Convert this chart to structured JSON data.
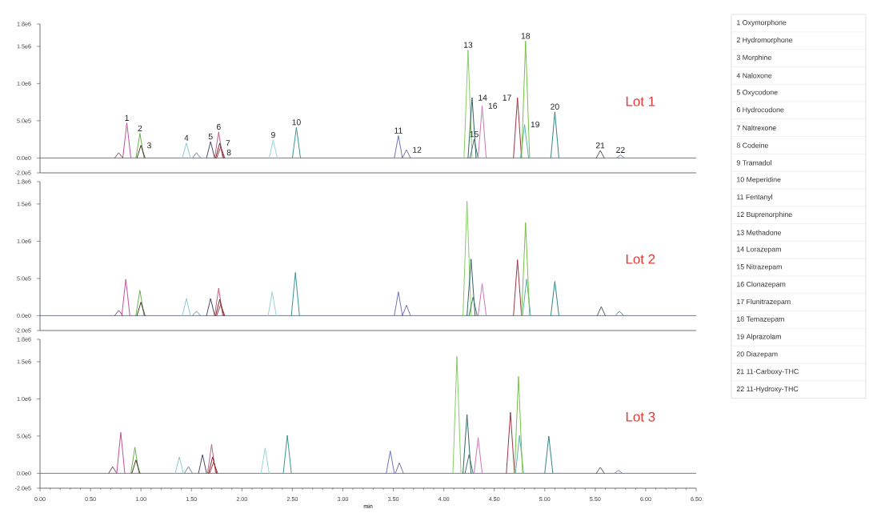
{
  "chart_data": [
    {
      "type": "line",
      "xlim": [
        0,
        6.5
      ],
      "ylim": [
        -200000,
        1800000
      ],
      "tick_labels": "y",
      "yticks": [
        {
          "value": -200000,
          "label": "-2.0e5"
        },
        {
          "value": 0,
          "label": "0.0e0"
        },
        {
          "value": 500000,
          "label": "5.0e5"
        },
        {
          "value": 1000000,
          "label": "1.0e6"
        },
        {
          "value": 1500000,
          "label": "1.5e6"
        },
        {
          "value": 1800000,
          "label": "1.8e6"
        }
      ],
      "ref_lines": [
        {
          "axis": "y",
          "value": 0,
          "color": "#505a6e"
        }
      ],
      "annotations": [
        "Lot 1",
        {
          "text": "1",
          "x": 0.86,
          "y": 470000
        },
        {
          "text": "2",
          "x": 0.99,
          "y": 330000
        },
        {
          "text": "3",
          "x": 1.0,
          "y": 170000
        },
        {
          "text": "4",
          "x": 1.45,
          "y": 200000
        },
        {
          "text": "5",
          "x": 1.69,
          "y": 220000
        },
        {
          "text": "6",
          "x": 1.77,
          "y": 350000
        },
        {
          "text": "7",
          "x": 1.78,
          "y": 200000
        },
        {
          "text": "8",
          "x": 1.79,
          "y": 150000
        },
        {
          "text": "9",
          "x": 2.31,
          "y": 240000
        },
        {
          "text": "10",
          "x": 2.54,
          "y": 410000
        },
        {
          "text": "11",
          "x": 3.55,
          "y": 300000
        },
        {
          "text": "12",
          "x": 3.63,
          "y": 110000
        },
        {
          "text": "13",
          "x": 4.24,
          "y": 1450000
        },
        {
          "text": "14",
          "x": 4.28,
          "y": 810000
        },
        {
          "text": "15",
          "x": 4.3,
          "y": 250000
        },
        {
          "text": "16",
          "x": 4.38,
          "y": 700000
        },
        {
          "text": "17",
          "x": 4.73,
          "y": 810000
        },
        {
          "text": "18",
          "x": 4.81,
          "y": 1570000
        },
        {
          "text": "19",
          "x": 4.8,
          "y": 450000
        },
        {
          "text": "20",
          "x": 5.1,
          "y": 620000
        },
        {
          "text": "21",
          "x": 5.55,
          "y": 100000
        },
        {
          "text": "22",
          "x": 5.75,
          "y": 40000
        }
      ],
      "series": [
        {
          "color": "#7a4a5a",
          "x": [
            0.74,
            0.78,
            0.82
          ],
          "values": [
            0,
            70000,
            0
          ]
        },
        {
          "color": "#c0509a",
          "x": [
            0.82,
            0.86,
            0.9
          ],
          "values": [
            0,
            470000,
            0
          ]
        },
        {
          "color": "#6ab04a",
          "x": [
            0.95,
            0.99,
            1.03
          ],
          "values": [
            0,
            330000,
            0
          ]
        },
        {
          "color": "#3c3c28",
          "x": [
            0.96,
            1.0,
            1.04
          ],
          "values": [
            0,
            170000,
            0
          ]
        },
        {
          "color": "#88cccc",
          "x": [
            1.41,
            1.45,
            1.49
          ],
          "values": [
            0,
            200000,
            0
          ]
        },
        {
          "color": "#7a86a6",
          "x": [
            1.51,
            1.55,
            1.59
          ],
          "values": [
            0,
            70000,
            0
          ]
        },
        {
          "color": "#4a4a5a",
          "x": [
            1.65,
            1.69,
            1.73
          ],
          "values": [
            0,
            220000,
            0
          ]
        },
        {
          "color": "#c0607e",
          "x": [
            1.73,
            1.77,
            1.81
          ],
          "values": [
            0,
            350000,
            0
          ]
        },
        {
          "color": "#7a2030",
          "x": [
            1.74,
            1.78,
            1.82
          ],
          "values": [
            0,
            200000,
            0
          ]
        },
        {
          "color": "#a03a3a",
          "x": [
            1.75,
            1.79,
            1.83
          ],
          "values": [
            0,
            150000,
            0
          ]
        },
        {
          "color": "#98d4d4",
          "x": [
            2.27,
            2.31,
            2.35
          ],
          "values": [
            0,
            240000,
            0
          ]
        },
        {
          "color": "#3a9494",
          "x": [
            2.5,
            2.54,
            2.58
          ],
          "values": [
            0,
            410000,
            0
          ]
        },
        {
          "color": "#6a74b4",
          "x": [
            3.51,
            3.55,
            3.59
          ],
          "values": [
            0,
            300000,
            0
          ]
        },
        {
          "color": "#7a6aa4",
          "x": [
            3.59,
            3.63,
            3.67
          ],
          "values": [
            0,
            110000,
            0
          ]
        },
        {
          "color": "#88cc66",
          "x": [
            4.2,
            4.24,
            4.28
          ],
          "values": [
            0,
            1450000,
            0
          ]
        },
        {
          "color": "#2e6464",
          "x": [
            4.24,
            4.28,
            4.32
          ],
          "values": [
            0,
            810000,
            0
          ]
        },
        {
          "color": "#3a7a6a",
          "x": [
            4.26,
            4.3,
            4.34
          ],
          "values": [
            0,
            250000,
            0
          ]
        },
        {
          "color": "#c878b8",
          "x": [
            4.34,
            4.38,
            4.42
          ],
          "values": [
            0,
            700000,
            0
          ]
        },
        {
          "color": "#a03444",
          "x": [
            4.69,
            4.73,
            4.77
          ],
          "values": [
            0,
            810000,
            0
          ]
        },
        {
          "color": "#58b4a4",
          "x": [
            4.76,
            4.8,
            4.84
          ],
          "values": [
            0,
            450000,
            0
          ]
        },
        {
          "color": "#74c444",
          "x": [
            4.77,
            4.81,
            4.85
          ],
          "values": [
            0,
            1570000,
            0
          ]
        },
        {
          "color": "#338484",
          "x": [
            5.06,
            5.1,
            5.14
          ],
          "values": [
            0,
            620000,
            0
          ]
        },
        {
          "color": "#545466",
          "x": [
            5.51,
            5.55,
            5.59
          ],
          "values": [
            0,
            100000,
            0
          ]
        },
        {
          "color": "#7888a8",
          "x": [
            5.71,
            5.75,
            5.79
          ],
          "values": [
            0,
            40000,
            0
          ]
        }
      ]
    },
    {
      "type": "line",
      "xlim": [
        0,
        6.5
      ],
      "ylim": [
        -200000,
        1800000
      ],
      "tick_labels": "y",
      "yticks": [
        {
          "value": -200000,
          "label": "-2.0e5"
        },
        {
          "value": 0,
          "label": "0.0e0"
        },
        {
          "value": 500000,
          "label": "5.0e5"
        },
        {
          "value": 1000000,
          "label": "1.0e6"
        },
        {
          "value": 1500000,
          "label": "1.5e6"
        },
        {
          "value": 1800000,
          "label": "1.8e6"
        }
      ],
      "ref_lines": [
        {
          "axis": "y",
          "value": 0,
          "color": "#505a6e"
        }
      ],
      "annotations": [
        "Lot 2"
      ],
      "series": [
        {
          "color": "#7a4a5a",
          "x": [
            0.74,
            0.78,
            0.82
          ],
          "values": [
            0,
            70000,
            0
          ]
        },
        {
          "color": "#c0509a",
          "x": [
            0.81,
            0.85,
            0.89
          ],
          "values": [
            0,
            490000,
            0
          ]
        },
        {
          "color": "#6ab04a",
          "x": [
            0.95,
            0.99,
            1.03
          ],
          "values": [
            0,
            340000,
            0
          ]
        },
        {
          "color": "#3c3c28",
          "x": [
            0.96,
            1.0,
            1.04
          ],
          "values": [
            0,
            180000,
            0
          ]
        },
        {
          "color": "#88cccc",
          "x": [
            1.41,
            1.45,
            1.49
          ],
          "values": [
            0,
            230000,
            0
          ]
        },
        {
          "color": "#7a86a6",
          "x": [
            1.51,
            1.55,
            1.59
          ],
          "values": [
            0,
            60000,
            0
          ]
        },
        {
          "color": "#4a4a5a",
          "x": [
            1.65,
            1.69,
            1.73
          ],
          "values": [
            0,
            230000,
            0
          ]
        },
        {
          "color": "#c0607e",
          "x": [
            1.73,
            1.77,
            1.81
          ],
          "values": [
            0,
            370000,
            0
          ]
        },
        {
          "color": "#7a2030",
          "x": [
            1.74,
            1.78,
            1.82
          ],
          "values": [
            0,
            220000,
            0
          ]
        },
        {
          "color": "#a03a3a",
          "x": [
            1.75,
            1.79,
            1.83
          ],
          "values": [
            0,
            150000,
            0
          ]
        },
        {
          "color": "#98d4d4",
          "x": [
            2.26,
            2.3,
            2.34
          ],
          "values": [
            0,
            320000,
            0
          ]
        },
        {
          "color": "#3a9494",
          "x": [
            2.49,
            2.53,
            2.57
          ],
          "values": [
            0,
            580000,
            0
          ]
        },
        {
          "color": "#6a74b4",
          "x": [
            3.51,
            3.55,
            3.59
          ],
          "values": [
            0,
            320000,
            0
          ]
        },
        {
          "color": "#7a6aa4",
          "x": [
            3.59,
            3.63,
            3.67
          ],
          "values": [
            0,
            140000,
            0
          ]
        },
        {
          "color": "#88cc66",
          "x": [
            4.19,
            4.23,
            4.27
          ],
          "values": [
            0,
            1540000,
            0
          ]
        },
        {
          "color": "#2e6464",
          "x": [
            4.23,
            4.27,
            4.31
          ],
          "values": [
            0,
            760000,
            0
          ]
        },
        {
          "color": "#3a7a6a",
          "x": [
            4.25,
            4.29,
            4.33
          ],
          "values": [
            0,
            250000,
            0
          ]
        },
        {
          "color": "#c878b8",
          "x": [
            4.34,
            4.38,
            4.42
          ],
          "values": [
            0,
            430000,
            0
          ]
        },
        {
          "color": "#a03444",
          "x": [
            4.69,
            4.73,
            4.77
          ],
          "values": [
            0,
            750000,
            0
          ]
        },
        {
          "color": "#58b4a4",
          "x": [
            4.78,
            4.82,
            4.86
          ],
          "values": [
            0,
            490000,
            0
          ]
        },
        {
          "color": "#74c444",
          "x": [
            4.77,
            4.81,
            4.85
          ],
          "values": [
            0,
            1250000,
            0
          ]
        },
        {
          "color": "#338484",
          "x": [
            5.06,
            5.1,
            5.14
          ],
          "values": [
            0,
            460000,
            0
          ]
        },
        {
          "color": "#545466",
          "x": [
            5.52,
            5.56,
            5.6
          ],
          "values": [
            0,
            120000,
            0
          ]
        },
        {
          "color": "#7888a8",
          "x": [
            5.7,
            5.74,
            5.78
          ],
          "values": [
            0,
            60000,
            0
          ]
        }
      ]
    },
    {
      "type": "line",
      "xlim": [
        0,
        6.5
      ],
      "ylim": [
        -200000,
        1800000
      ],
      "xlabel": "min",
      "xticks": [
        {
          "value": 0,
          "label": "0.00"
        },
        {
          "value": 0.5,
          "label": "0.50"
        },
        {
          "value": 1,
          "label": "1.00"
        },
        {
          "value": 1.5,
          "label": "1.50"
        },
        {
          "value": 2,
          "label": "2.00"
        },
        {
          "value": 2.5,
          "label": "2.50"
        },
        {
          "value": 3,
          "label": "3.00"
        },
        {
          "value": 3.5,
          "label": "3.50"
        },
        {
          "value": 4,
          "label": "4.00"
        },
        {
          "value": 4.5,
          "label": "4.50"
        },
        {
          "value": 5,
          "label": "5.00"
        },
        {
          "value": 5.5,
          "label": "5.50"
        },
        {
          "value": 6,
          "label": "6.00"
        },
        {
          "value": 6.5,
          "label": "6.50"
        }
      ],
      "yticks": [
        {
          "value": -200000,
          "label": "-2.0e5"
        },
        {
          "value": 0,
          "label": "0.0e0"
        },
        {
          "value": 500000,
          "label": "5.0e5"
        },
        {
          "value": 1000000,
          "label": "1.0e6"
        },
        {
          "value": 1500000,
          "label": "1.5e6"
        },
        {
          "value": 1800000,
          "label": "1.8e6"
        }
      ],
      "ref_lines": [
        {
          "axis": "y",
          "value": 0,
          "color": "#505a6e"
        }
      ],
      "annotations": [
        "Lot 3"
      ],
      "series": [
        {
          "color": "#7a4a5a",
          "x": [
            0.68,
            0.72,
            0.76
          ],
          "values": [
            0,
            90000,
            0
          ]
        },
        {
          "color": "#c0509a",
          "x": [
            0.76,
            0.8,
            0.84
          ],
          "values": [
            0,
            550000,
            0
          ]
        },
        {
          "color": "#6ab04a",
          "x": [
            0.9,
            0.94,
            0.98
          ],
          "values": [
            0,
            350000,
            0
          ]
        },
        {
          "color": "#3c3c28",
          "x": [
            0.91,
            0.95,
            0.99
          ],
          "values": [
            0,
            180000,
            0
          ]
        },
        {
          "color": "#88cccc",
          "x": [
            1.34,
            1.38,
            1.42
          ],
          "values": [
            0,
            220000,
            0
          ]
        },
        {
          "color": "#7a86a6",
          "x": [
            1.43,
            1.47,
            1.51
          ],
          "values": [
            0,
            90000,
            0
          ]
        },
        {
          "color": "#4a4a5a",
          "x": [
            1.57,
            1.61,
            1.65
          ],
          "values": [
            0,
            250000,
            0
          ]
        },
        {
          "color": "#c0607e",
          "x": [
            1.66,
            1.7,
            1.74
          ],
          "values": [
            0,
            390000,
            0
          ]
        },
        {
          "color": "#7a2030",
          "x": [
            1.67,
            1.71,
            1.75
          ],
          "values": [
            0,
            220000,
            0
          ]
        },
        {
          "color": "#a03a3a",
          "x": [
            1.68,
            1.72,
            1.76
          ],
          "values": [
            0,
            150000,
            0
          ]
        },
        {
          "color": "#98d4d4",
          "x": [
            2.19,
            2.23,
            2.27
          ],
          "values": [
            0,
            340000,
            0
          ]
        },
        {
          "color": "#3a9494",
          "x": [
            2.41,
            2.45,
            2.49
          ],
          "values": [
            0,
            510000,
            0
          ]
        },
        {
          "color": "#6a74b4",
          "x": [
            3.43,
            3.47,
            3.51
          ],
          "values": [
            0,
            300000,
            0
          ]
        },
        {
          "color": "#7a6aa4",
          "x": [
            3.52,
            3.56,
            3.6
          ],
          "values": [
            0,
            140000,
            0
          ]
        },
        {
          "color": "#88cc66",
          "x": [
            4.09,
            4.13,
            4.17
          ],
          "values": [
            0,
            1570000,
            0
          ]
        },
        {
          "color": "#2e6464",
          "x": [
            4.19,
            4.23,
            4.27
          ],
          "values": [
            0,
            790000,
            0
          ]
        },
        {
          "color": "#3a7a6a",
          "x": [
            4.21,
            4.25,
            4.29
          ],
          "values": [
            0,
            250000,
            0
          ]
        },
        {
          "color": "#c878b8",
          "x": [
            4.3,
            4.34,
            4.38
          ],
          "values": [
            0,
            480000,
            0
          ]
        },
        {
          "color": "#a03444",
          "x": [
            4.62,
            4.66,
            4.7
          ],
          "values": [
            0,
            820000,
            0
          ]
        },
        {
          "color": "#58b4a4",
          "x": [
            4.71,
            4.75,
            4.79
          ],
          "values": [
            0,
            510000,
            0
          ]
        },
        {
          "color": "#74c444",
          "x": [
            4.7,
            4.74,
            4.78
          ],
          "values": [
            0,
            1300000,
            0
          ]
        },
        {
          "color": "#338484",
          "x": [
            5.0,
            5.04,
            5.08
          ],
          "values": [
            0,
            500000,
            0
          ]
        },
        {
          "color": "#545466",
          "x": [
            5.51,
            5.55,
            5.59
          ],
          "values": [
            0,
            80000,
            0
          ]
        },
        {
          "color": "#7888a8",
          "x": [
            5.69,
            5.73,
            5.77
          ],
          "values": [
            0,
            40000,
            0
          ]
        }
      ]
    },
    {
      "type": "other",
      "annotations": [
        "1 Oxymorphone",
        "2 Hydromorphone",
        "3 Morphine",
        "4 Naloxone",
        "5 Oxycodone",
        "6 Hydrocodone",
        "7 Naltrexone",
        "8 Codeine",
        "9 Tramadol",
        "10 Meperidine",
        "11 Fentanyl",
        "12 Buprenorphine",
        "13 Methadone",
        "14 Lorazepam",
        "15 Nitrazepam",
        "16 Clonazepam",
        "17 Flunitrazepam",
        "18 Temazepam",
        "19 Alprazolam",
        "20 Diazepam",
        "21 11-Carboxy-THC",
        "22 11-Hydroxy-THC"
      ]
    }
  ]
}
